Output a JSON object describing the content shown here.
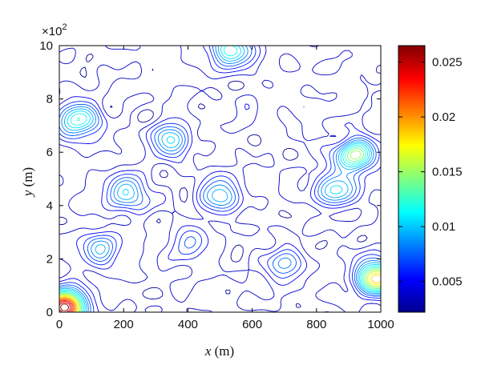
{
  "chart_data": {
    "type": "heatmap",
    "plot_kind": "contour",
    "title": "",
    "xlabel_var": "x",
    "xlabel_unit": " (m)",
    "ylabel_var": "y",
    "ylabel_unit": " (m)",
    "xlim": [
      0,
      1000
    ],
    "ylim": [
      0,
      1000
    ],
    "x_ticks": [
      0,
      200,
      400,
      600,
      800,
      1000
    ],
    "y_ticks": [
      0,
      2,
      4,
      6,
      8,
      10
    ],
    "y_multiplier_base": "×10",
    "y_multiplier_exp": "2",
    "colorbar": {
      "range": [
        0.0022,
        0.0265
      ],
      "ticks": [
        0.005,
        0.01,
        0.015,
        0.02,
        0.025
      ],
      "tick_labels": [
        "0.005",
        "0.01",
        "0.015",
        "0.02",
        "0.025"
      ],
      "colormap": "jet"
    },
    "hotspots": [
      {
        "x": 20,
        "y": 20,
        "value": 0.026
      },
      {
        "x": 990,
        "y": 130,
        "value": 0.02
      },
      {
        "x": 60,
        "y": 720,
        "value": 0.014
      },
      {
        "x": 920,
        "y": 590,
        "value": 0.016
      },
      {
        "x": 860,
        "y": 460,
        "value": 0.012
      },
      {
        "x": 530,
        "y": 980,
        "value": 0.013
      },
      {
        "x": 350,
        "y": 650,
        "value": 0.011
      },
      {
        "x": 210,
        "y": 450,
        "value": 0.012
      },
      {
        "x": 500,
        "y": 440,
        "value": 0.011
      },
      {
        "x": 130,
        "y": 240,
        "value": 0.01
      },
      {
        "x": 700,
        "y": 180,
        "value": 0.009
      },
      {
        "x": 400,
        "y": 250,
        "value": 0.008
      }
    ]
  }
}
